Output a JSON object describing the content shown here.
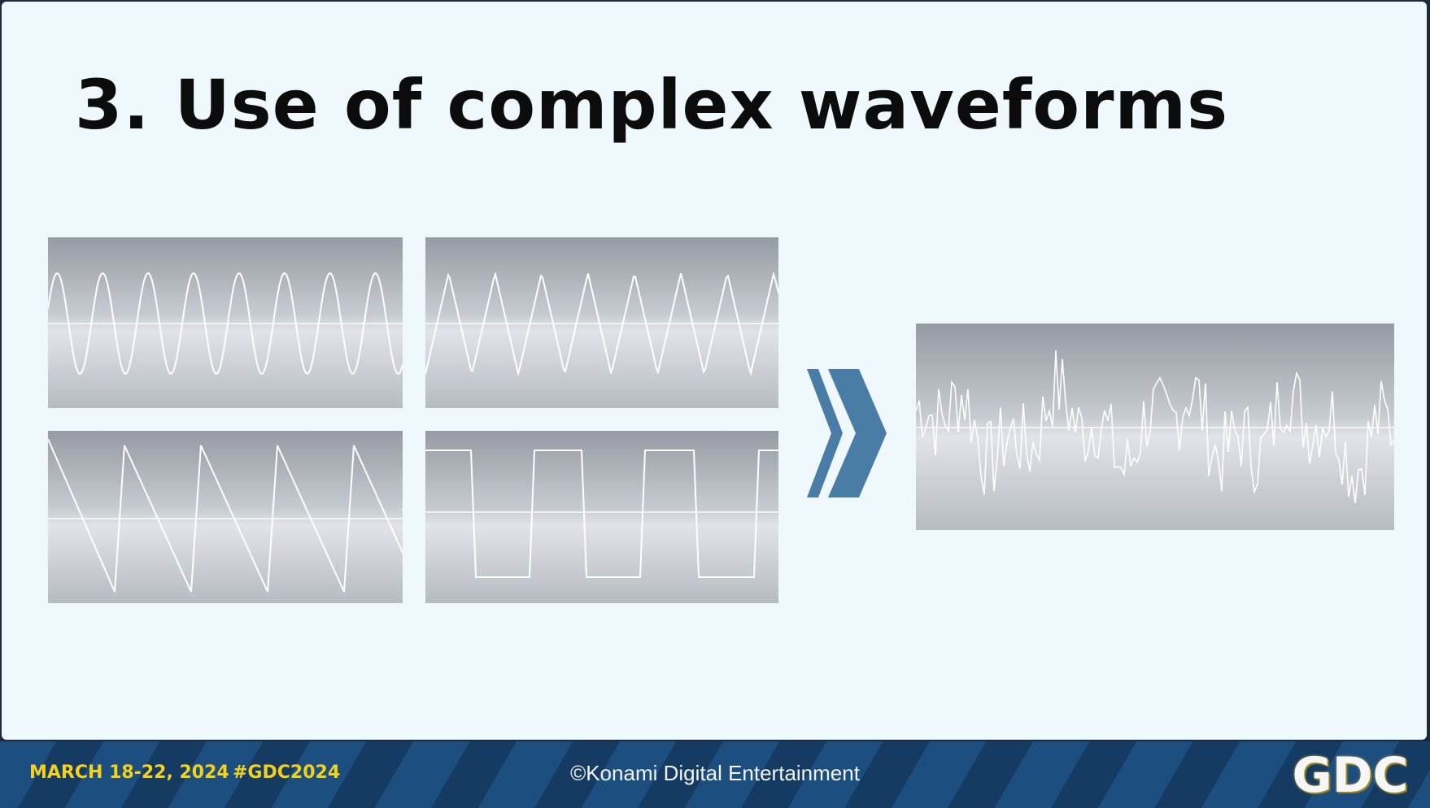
{
  "slide": {
    "title": "3. Use of complex waveforms"
  },
  "waveforms": {
    "inputs": [
      "sine",
      "triangle",
      "sawtooth",
      "square"
    ],
    "result": "complex"
  },
  "colors": {
    "background": "#eef8fd",
    "title": "#0c0c0c",
    "panel_top": "#969ba3",
    "panel_mid": "#e0e4e8",
    "wave_line": "#ffffff",
    "arrow": "#4a7da6",
    "footer_dark": "#163b63",
    "footer_light": "#1d4e80",
    "footer_accent": "#f3d21b"
  },
  "icons": {
    "arrow": "double-chevron-right-icon",
    "logo": "gdc-logo"
  },
  "footer": {
    "date": "MARCH 18-22, 2024",
    "hashtag": "#GDC2024",
    "copyright": "©Konami Digital Entertainment",
    "logo_text": "GDC"
  }
}
